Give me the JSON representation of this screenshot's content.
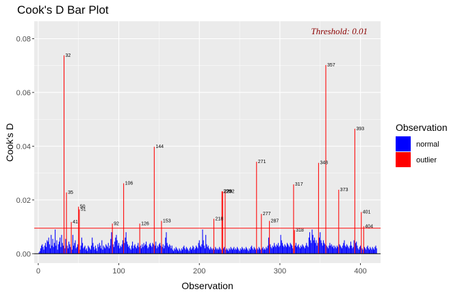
{
  "chart_data": {
    "type": "bar",
    "title": "Cook's D Bar Plot",
    "xlabel": "Observation",
    "ylabel": "Cook's D",
    "xlim": [
      -5,
      425
    ],
    "ylim": [
      -0.0035,
      0.0865
    ],
    "xticks": [
      0,
      100,
      200,
      300,
      400
    ],
    "yticks": [
      0.0,
      0.02,
      0.04,
      0.06,
      0.08
    ],
    "ytick_labels": [
      "0.00",
      "0.02",
      "0.04",
      "0.06",
      "0.08"
    ],
    "grid": true,
    "threshold": 0.0095,
    "annotation": "Threshold: 0.01",
    "legend": {
      "title": "Observation",
      "position": "right",
      "entries": [
        {
          "label": "normal",
          "color": "#0000FF"
        },
        {
          "label": "outlier",
          "color": "#FF0000"
        }
      ]
    },
    "colors": {
      "normal": "#0000FF",
      "outlier": "#FF0000",
      "threshold": "#FF0000",
      "annotation": "#8B0000",
      "panel": "#EBEBEB",
      "grid": "#FFFFFF"
    },
    "outliers": [
      {
        "obs": 32,
        "value": 0.0738,
        "label": "32"
      },
      {
        "obs": 35,
        "value": 0.0228,
        "label": "35"
      },
      {
        "obs": 41,
        "value": 0.0118,
        "label": "41"
      },
      {
        "obs": 50,
        "value": 0.0175,
        "label": "50"
      },
      {
        "obs": 51,
        "value": 0.0165,
        "label": "51"
      },
      {
        "obs": 92,
        "value": 0.0112,
        "label": "92"
      },
      {
        "obs": 106,
        "value": 0.0262,
        "label": "106"
      },
      {
        "obs": 126,
        "value": 0.0112,
        "label": "126"
      },
      {
        "obs": 144,
        "value": 0.0398,
        "label": "144"
      },
      {
        "obs": 153,
        "value": 0.0122,
        "label": "153"
      },
      {
        "obs": 218,
        "value": 0.013,
        "label": "218"
      },
      {
        "obs": 228,
        "value": 0.0232,
        "label": "228"
      },
      {
        "obs": 229,
        "value": 0.0232,
        "label": "229"
      },
      {
        "obs": 232,
        "value": 0.0232,
        "label": "232"
      },
      {
        "obs": 271,
        "value": 0.0342,
        "label": "271"
      },
      {
        "obs": 277,
        "value": 0.0148,
        "label": "277"
      },
      {
        "obs": 287,
        "value": 0.0122,
        "label": "287"
      },
      {
        "obs": 317,
        "value": 0.0258,
        "label": "317"
      },
      {
        "obs": 318,
        "value": 0.0088,
        "label": "318"
      },
      {
        "obs": 348,
        "value": 0.0338,
        "label": "348"
      },
      {
        "obs": 357,
        "value": 0.0702,
        "label": "357"
      },
      {
        "obs": 373,
        "value": 0.0238,
        "label": "373"
      },
      {
        "obs": 393,
        "value": 0.0465,
        "label": "393"
      },
      {
        "obs": 401,
        "value": 0.0155,
        "label": "401"
      },
      {
        "obs": 404,
        "value": 0.0102,
        "label": "404"
      }
    ],
    "normal_values": [
      0.0005,
      0.001,
      0.002,
      0.003,
      0.0035,
      0.0025,
      0.0015,
      0.003,
      0.004,
      0.0025,
      0.005,
      0.0045,
      0.006,
      0.0035,
      0.002,
      0.007,
      0.003,
      0.0055,
      0.0025,
      0.004,
      0.009,
      0.003,
      0.005,
      0.0015,
      0.0035,
      0.0045,
      0.006,
      0.0025,
      0.007,
      0.004,
      0.003,
      0.002,
      0.0055,
      0.003,
      0.002,
      0.0045,
      0.0035,
      0.0025,
      0.0015,
      0.007,
      0.003,
      0.004,
      0.005,
      0.002,
      0.0025,
      0.0035,
      0.0015,
      0.003,
      0.006,
      0.004,
      0.002,
      0.0025,
      0.003,
      0.0015,
      0.002,
      0.001,
      0.003,
      0.0025,
      0.002,
      0.0015,
      0.003,
      0.006,
      0.004,
      0.0025,
      0.0015,
      0.003,
      0.002,
      0.001,
      0.0035,
      0.0025,
      0.004,
      0.003,
      0.002,
      0.005,
      0.0015,
      0.003,
      0.0025,
      0.002,
      0.0035,
      0.003,
      0.0025,
      0.004,
      0.002,
      0.003,
      0.0055,
      0.008,
      0.0035,
      0.0025,
      0.0045,
      0.006,
      0.007,
      0.005,
      0.003,
      0.004,
      0.002,
      0.003,
      0.0025,
      0.0035,
      0.005,
      0.004,
      0.006,
      0.008,
      0.0045,
      0.0035,
      0.0025,
      0.003,
      0.002,
      0.0015,
      0.003,
      0.0045,
      0.002,
      0.003,
      0.0035,
      0.0025,
      0.002,
      0.003,
      0.004,
      0.0025,
      0.003,
      0.002,
      0.0035,
      0.0025,
      0.004,
      0.003,
      0.0035,
      0.0045,
      0.003,
      0.002,
      0.0025,
      0.0035,
      0.004,
      0.003,
      0.0025,
      0.004,
      0.0035,
      0.003,
      0.0045,
      0.002,
      0.003,
      0.0025,
      0.0035,
      0.004,
      0.003,
      0.0025,
      0.0035,
      0.002,
      0.003,
      0.006,
      0.008,
      0.004,
      0.003,
      0.0025,
      0.0035,
      0.003,
      0.002,
      0.003,
      0.0015,
      0.001,
      0.002,
      0.0015,
      0.0025,
      0.002,
      0.0015,
      0.001,
      0.002,
      0.0015,
      0.001,
      0.002,
      0.0015,
      0.0025,
      0.003,
      0.002,
      0.0015,
      0.0025,
      0.002,
      0.0015,
      0.001,
      0.002,
      0.0025,
      0.0015,
      0.002,
      0.003,
      0.0025,
      0.0015,
      0.002,
      0.003,
      0.0025,
      0.002,
      0.004,
      0.005,
      0.003,
      0.0025,
      0.0035,
      0.009,
      0.005,
      0.003,
      0.002,
      0.007,
      0.0035,
      0.0025,
      0.003,
      0.002,
      0.0015,
      0.0025,
      0.002,
      0.0015,
      0.002,
      0.0015,
      0.0025,
      0.002,
      0.0015,
      0.002,
      0.0015,
      0.0025,
      0.002,
      0.0015,
      0.002,
      0.0025,
      0.0015,
      0.002,
      0.0015,
      0.001,
      0.002,
      0.0015,
      0.0025,
      0.002,
      0.0015,
      0.002,
      0.0025,
      0.0015,
      0.002,
      0.0015,
      0.0025,
      0.002,
      0.0015,
      0.001,
      0.002,
      0.0015,
      0.0025,
      0.002,
      0.0015,
      0.002,
      0.0015,
      0.0025,
      0.002,
      0.0015,
      0.001,
      0.002,
      0.0015,
      0.0025,
      0.003,
      0.002,
      0.0015,
      0.0025,
      0.002,
      0.0015,
      0.002,
      0.0015,
      0.0025,
      0.002,
      0.0015,
      0.002,
      0.0025,
      0.0015,
      0.002,
      0.0015,
      0.0025,
      0.002,
      0.003,
      0.006,
      0.0035,
      0.0025,
      0.002,
      0.003,
      0.0025,
      0.004,
      0.003,
      0.0025,
      0.0035,
      0.003,
      0.004,
      0.0025,
      0.003,
      0.007,
      0.005,
      0.004,
      0.003,
      0.0025,
      0.0035,
      0.003,
      0.0025,
      0.004,
      0.0035,
      0.003,
      0.0025,
      0.004,
      0.0035,
      0.003,
      0.002,
      0.003,
      0.004,
      0.0025,
      0.003,
      0.0035,
      0.0025,
      0.002,
      0.003,
      0.0025,
      0.0035,
      0.003,
      0.0025,
      0.002,
      0.003,
      0.004,
      0.003,
      0.0025,
      0.006,
      0.008,
      0.005,
      0.004,
      0.009,
      0.007,
      0.005,
      0.006,
      0.004,
      0.005,
      0.003,
      0.004,
      0.006,
      0.008,
      0.005,
      0.004,
      0.003,
      0.005,
      0.004,
      0.0035,
      0.003,
      0.0025,
      0.002,
      0.003,
      0.004,
      0.003,
      0.0035,
      0.0025,
      0.003,
      0.002,
      0.003,
      0.0025,
      0.002,
      0.003,
      0.0025,
      0.0035,
      0.003,
      0.0025,
      0.002,
      0.003,
      0.004,
      0.005,
      0.003,
      0.0025,
      0.0035,
      0.003,
      0.0025,
      0.002,
      0.003,
      0.0045,
      0.003,
      0.002,
      0.0025,
      0.005,
      0.004,
      0.0045,
      0.003,
      0.002,
      0.0015,
      0.0025,
      0.003,
      0.002,
      0.0015,
      0.0025,
      0.002,
      0.0015,
      0.0025,
      0.003,
      0.002,
      0.0015,
      0.0025,
      0.002,
      0.0015,
      0.0025,
      0.002,
      0.0015,
      0.0025,
      0.003,
      0.002,
      0.0015,
      0.0025,
      0.002,
      0.0015,
      0.002
    ]
  }
}
